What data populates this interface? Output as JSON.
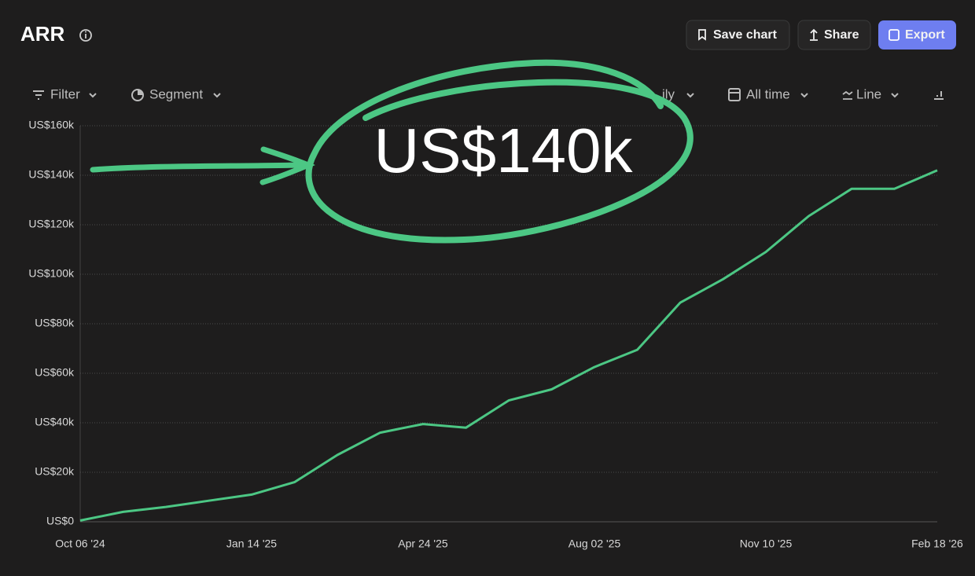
{
  "header": {
    "title": "ARR",
    "buttons": [
      "Save chart",
      "Share",
      "Export"
    ]
  },
  "toolbar": [
    "Filter",
    "Segment",
    "ily",
    "All time",
    "Line"
  ],
  "annotation": "US$140k",
  "chart_data": {
    "type": "line",
    "color": "#4cc784",
    "grid": true,
    "x": [
      "2024-10-06",
      "2024-10-31",
      "2024-11-25",
      "2024-12-20",
      "2025-01-14",
      "2025-02-08",
      "2025-03-05",
      "2025-03-30",
      "2025-04-24",
      "2025-05-19",
      "2025-06-13",
      "2025-07-08",
      "2025-08-02",
      "2025-08-27",
      "2025-09-21",
      "2025-10-16",
      "2025-11-10",
      "2025-12-05",
      "2025-12-30",
      "2026-01-24",
      "2026-02-18"
    ],
    "values": [
      500,
      4000,
      6000,
      8500,
      11000,
      16000,
      27000,
      36000,
      39500,
      38000,
      49000,
      53500,
      62500,
      69500,
      88500,
      98000,
      109000,
      123500,
      134500,
      134500,
      142000
    ],
    "xlim": [
      "2024-10-06",
      "2026-02-18"
    ],
    "xticks": [
      {
        "value": "2024-10-06",
        "label": "Oct 06 '24"
      },
      {
        "value": "2025-01-14",
        "label": "Jan 14 '25"
      },
      {
        "value": "2025-04-24",
        "label": "Apr 24 '25"
      },
      {
        "value": "2025-08-02",
        "label": "Aug 02 '25"
      },
      {
        "value": "2025-11-10",
        "label": "Nov 10 '25"
      },
      {
        "value": "2026-02-18",
        "label": "Feb 18 '26"
      }
    ],
    "ylim": [
      0,
      160000
    ],
    "yticks": [
      {
        "value": 0,
        "label": "US$0"
      },
      {
        "value": 20000,
        "label": "US$20k"
      },
      {
        "value": 40000,
        "label": "US$40k"
      },
      {
        "value": 60000,
        "label": "US$60k"
      },
      {
        "value": 80000,
        "label": "US$80k"
      },
      {
        "value": 100000,
        "label": "US$100k"
      },
      {
        "value": 120000,
        "label": "US$120k"
      },
      {
        "value": 140000,
        "label": "US$140k"
      },
      {
        "value": 160000,
        "label": "US$160k"
      }
    ]
  }
}
